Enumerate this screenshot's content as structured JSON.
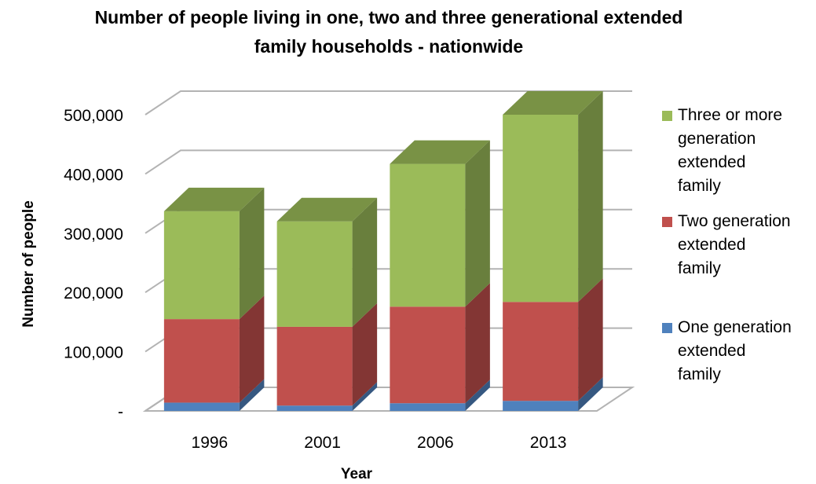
{
  "chart_data": {
    "type": "bar",
    "stacked": true,
    "style": "3d",
    "title_lines": [
      "Number of people living in one, two and three generational extended",
      "family households - nationwide"
    ],
    "xlabel": "Year",
    "ylabel": "Number of people",
    "categories": [
      "1996",
      "2001",
      "2006",
      "2013"
    ],
    "y_tick_labels": [
      "-",
      "100,000",
      "200,000",
      "300,000",
      "400,000",
      "500,000"
    ],
    "y_ticks": [
      0,
      100000,
      200000,
      300000,
      400000,
      500000
    ],
    "ylim": [
      0,
      500000
    ],
    "grid": true,
    "legend_position": "right",
    "series": [
      {
        "name": "One generation extended family",
        "values": [
          14000,
          9000,
          13000,
          17000
        ],
        "color": "#4F81BD"
      },
      {
        "name": "Two generation extended family",
        "values": [
          141000,
          133000,
          163000,
          167000
        ],
        "color": "#C0504D"
      },
      {
        "name": "Three or more generation extended family",
        "values": [
          182000,
          178000,
          241000,
          316000
        ],
        "color": "#9BBB59"
      }
    ],
    "legend_lines": [
      [
        "Three or more",
        "generation",
        "extended",
        "family"
      ],
      [
        "Two generation",
        "extended",
        "family"
      ],
      [
        "One generation",
        "extended",
        "family"
      ]
    ]
  }
}
